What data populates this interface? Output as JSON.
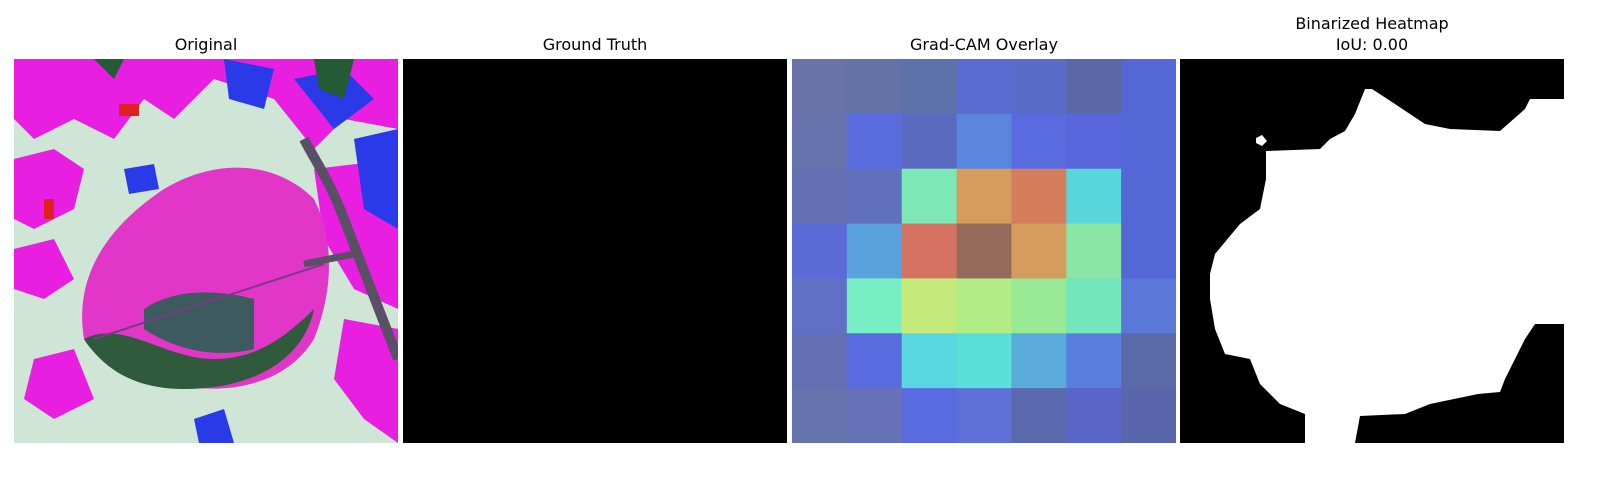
{
  "panels": {
    "original": {
      "title": "Original"
    },
    "ground_truth": {
      "title": "Ground Truth"
    },
    "gradcam": {
      "title": "Grad-CAM Overlay",
      "grid": [
        [
          "#6a73a8",
          "#6373a8",
          "#5d72a8",
          "#5a6bd4",
          "#5a6bc8",
          "#5a68a5",
          "#5467d6"
        ],
        [
          "#6672ac",
          "#5a6bde",
          "#5a6bbf",
          "#5a86dd",
          "#5a6be0",
          "#5a66db",
          "#5467d6"
        ],
        [
          "#6470b4",
          "#6070bc",
          "#7de8b6",
          "#d69c5e",
          "#d47e5c",
          "#58d6dc",
          "#5467d6"
        ],
        [
          "#5a6bd8",
          "#5aa2de",
          "#d67262",
          "#966a5a",
          "#d69c5e",
          "#8ae6a4",
          "#5467d6"
        ],
        [
          "#6070c4",
          "#78eec4",
          "#c4ea7c",
          "#b2ec84",
          "#98e894",
          "#74e6bc",
          "#5a78d8"
        ],
        [
          "#6470b4",
          "#5a6be0",
          "#5ad6e0",
          "#5ae0d6",
          "#5aaadc",
          "#5a7ede",
          "#5a6aa6"
        ],
        [
          "#6674ae",
          "#6671b8",
          "#5a6be0",
          "#5f70d8",
          "#5a69ae",
          "#5a65c8",
          "#5a66ac"
        ]
      ]
    },
    "binarized": {
      "title": "Binarized Heatmap",
      "subtitle": "IoU: 0.00"
    }
  }
}
